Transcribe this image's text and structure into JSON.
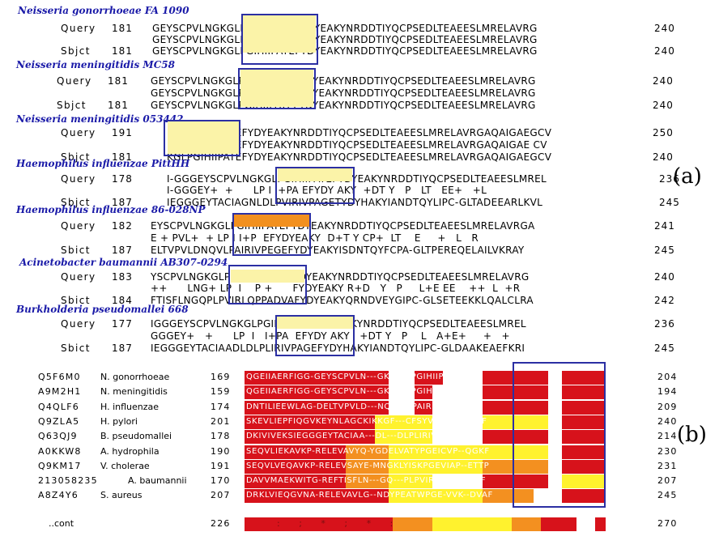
{
  "panel_labels": {
    "a": "(a)",
    "b": "(b)"
  },
  "colors": {
    "organism": "#1a1aa8",
    "motif_box": "#2b2fa3",
    "highlight_yellow": "#fbf3a8",
    "highlight_orange": "#f2901e",
    "conserved_red": "#d7121b",
    "conserved_orange": "#f39020",
    "conserved_yellow": "#fff22e"
  },
  "blast": [
    {
      "organism": "Neisseria gonorrhoeae FA 1090",
      "q_label": "Query",
      "q_start": "181",
      "q_seq": "GEYSCPVLNGKGLPGIHIIPATEFYDYEAKYNRDDTIYQCPSEDLTEAEESLMRELAVRG",
      "q_end": "240",
      "mid": "GEYSCPVLNGKGLPGIHIIPATEFYDYEAKYNRDDTIYQCPSEDLTEAEESLMRELAVRG",
      "s_label": "Sbjct",
      "s_start": "181",
      "s_seq": "GEYSCPVLNGKGLPGIHIIPATEFYDYEAKYNRDDTIYQCPSEDLTEAEESLMRELAVRG",
      "s_end": "240"
    },
    {
      "organism": "Neisseria meningitidis MC58",
      "q_label": "Query",
      "q_start": "181",
      "q_seq": "GEYSCPVLNGKGLPGIHIIPATEFYDYEAKYNRDDTIYQCPSEDLTEAEESLMRELAVRG",
      "q_end": "240",
      "mid": "GEYSCPVLNGKGLPGIHIIPATEFYDYEAKYNRDDTIYQCPSEDLTEAEESLMRELAVRG",
      "s_label": "Sbjct",
      "s_start": "181",
      "s_seq": "GEYSCPVLNGKGLPGIHIIPATEFYDYEAKYNRDDTIYQCPSEDLTEAEESLMRELAVRG",
      "s_end": "240"
    },
    {
      "organism": "Neisseria meningitidis 053442",
      "q_label": "Query",
      "q_start": "191",
      "q_seq": "KGLPGIHIIPATEFYDYEAKYNRDDTIYQCPSEDLTEAEESLMRELAVRGAQAIGAEGCV",
      "q_end": "250",
      "mid": "KGLPGIHIIPATEFYDYEAKYNRDDTIYQCPSEDLTEAEESLMRELAVRGAQAIGAE CV",
      "s_label": "Sbjct",
      "s_start": "181",
      "s_seq": "KGLPGIHIIPATEFYDYEAKYNRDDTIYQCPSEDLTEAEESLMRELAVRGAQAIGAEGCV",
      "s_end": "240"
    },
    {
      "organism": "Haemophilus influenzae PittHH",
      "q_label": "Query",
      "q_start": "178",
      "q_seq": "I-GGGEYSCPVLNGKGLPGIHIIPATEFYDYEAKYNRDDTIYQCPSEDLTEAEESLMREL",
      "q_end": "236",
      "mid": "I-GGGEY+  +      LP I I+PA EFYDY AKY  +DT Y   P   LT   EE+   +L",
      "s_label": "Sbjct",
      "s_start": "187",
      "s_seq": "IEGGGEYTACIAGNLDLPVIRIVPAGETYDYHAKYIANDTQYLIPC-GLTADEEARLKVL",
      "s_end": "245"
    },
    {
      "organism": "Haemophilus influenzae 86-028NP",
      "q_label": "Query",
      "q_start": "182",
      "q_seq": "EYSCPVLNGKGLPGIHIIPATEFYDYEAKYNRDDTIYQCPSEDLTEAEESLMRELAVRGA",
      "q_end": "241",
      "mid": "E + PVL+  + LP I I+P  EFYDYEAKY  D+T Y CP+  LT    E     +   L   R",
      "s_label": "Sbict",
      "s_start": "187",
      "s_seq": "ELTVPVLDNQVLPAIRIVPEGEFYDYEAKYISDNTQYFCPA-GLTPEREQELAILVKRAY",
      "s_end": "245"
    },
    {
      "organism": "Acinetobacter baumannii AB307-0294",
      "q_label": "Query",
      "q_start": "183",
      "q_seq": "YSCPVLNGKGLPGIHIIPATE--FYDYEAKYNRDDTIYQCPSEDLTEAEESLMRELAVRG",
      "q_end": "240",
      "mid": "++      LNG+ LP  I    P +      FYDYEAKY R+D   Y   P     L+E EE    ++  L  +R",
      "s_label": "Sbict",
      "s_start": "184",
      "s_seq": "FTISFLNGQPLPVIRLQPPADVAFYDYEAKYQRNDVEYGIPC-GLSETEEKKLQALCLRA",
      "s_end": "242"
    },
    {
      "organism": "Burkholderia pseudomallei 668",
      "q_label": "Query",
      "q_start": "177",
      "q_seq": "IGGGEYSCPVLNGKGLPGIHIIPATEFYDYEAKYNRDDTIYQCPSEDLTEAEESLMREL",
      "q_end": "236",
      "mid": "GGGEY+   +      LP  I   I+PA  EFYDY AKY   +DT Y   P    L   A+E+     +   +",
      "s_label": "Sbict",
      "s_start": "187",
      "s_seq": "IEGGGEYTACIAADLDLPLIRIVPAGEFYDYHAKYIANDTQYLIPC-GLDAAKEAEFKRI",
      "s_end": "245"
    }
  ],
  "msa": {
    "rows": [
      {
        "acc": "Q5F6M0",
        "species": "N. gonorrhoeae",
        "start": "169",
        "seq": "QGEIIAERFIGG-GEYSCPVLN---GK---GLPGIHIIP--ATEF",
        "end": "204"
      },
      {
        "acc": "A9M2H1",
        "species": "N. meningitidis",
        "start": "159",
        "seq": "QGEIIAERFIGG-GEYSCPVLN---GK---GLPGIHIIP--ATEF",
        "end": "194"
      },
      {
        "acc": "Q4QLF6",
        "species": "H. influenzae",
        "start": "174",
        "seq": "DNTILIEEWLAG-DELTVPVLD---NQ---VLPAIRIVP--EGEF",
        "end": "209"
      },
      {
        "acc": "Q9ZLA5",
        "species": "H. pylori",
        "start": "201",
        "seq": "SKEVLIEPFIQGVKEYNLAGCKIKKGF---CFSYVEEPN--KQEF",
        "end": "240"
      },
      {
        "acc": "Q63QJ9",
        "species": "B. pseudomallei",
        "start": "178",
        "seq": "DKIVIVEKSIEGGGEYTACIAA---DL---DLPLIRIVP--AGEF",
        "end": "214"
      },
      {
        "acc": "A0KKW8",
        "species": "A. hydrophila",
        "start": "190",
        "seq": "SEQVLIEKAVKP-RELEVAVYQ-YGDELVATYPGEICVP--QGKF",
        "end": "230"
      },
      {
        "acc": "Q9KM17",
        "species": "V. cholerae",
        "start": "191",
        "seq": "SEQVLVEQAVKP-RELEVSAYE-MNGKLYISKPGEVIAP--ETTP",
        "end": "231"
      },
      {
        "acc": "213058235",
        "species": "A. baumannii",
        "start": "170",
        "seq": "DAVVMAEKWITG-REFTISFLN---GQ---PLPVIRLQPPADVAF",
        "end": "207"
      },
      {
        "acc": "A8Z4Y6",
        "species": "S. aureus",
        "start": "207",
        "seq": "DRKLVIEQGVNA-RELEVAVLG--NDYPEATWPGE-VVK--DVAF",
        "end": "245"
      }
    ],
    "cons_label": "..cont",
    "cons_start": "226",
    "cons_end": "270",
    "cons_marks": ": ; * ; * :"
  }
}
